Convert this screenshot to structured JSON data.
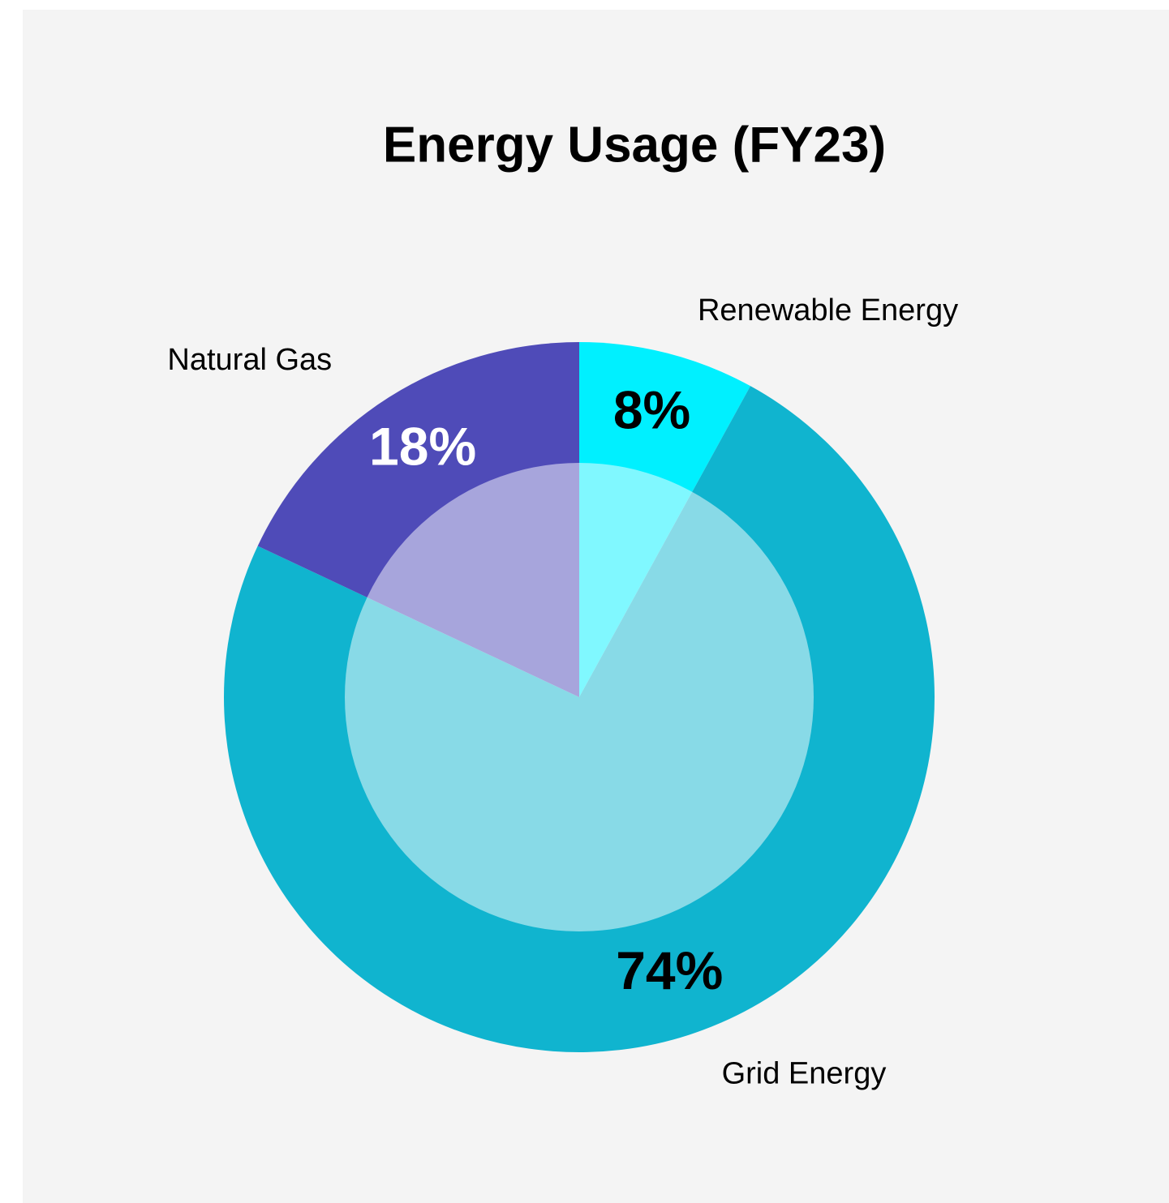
{
  "chart_data": {
    "type": "pie",
    "title": "Energy Usage (FY23)",
    "categories": [
      "Renewable Energy",
      "Grid Energy",
      "Natural Gas"
    ],
    "values": [
      8,
      74,
      18
    ],
    "value_labels": [
      "8%",
      "74%",
      "18%"
    ],
    "colors": [
      "#00f0ff",
      "#10b4cf",
      "#4f4bb8"
    ],
    "value_label_colors": [
      "#000000",
      "#000000",
      "#ffffff"
    ]
  }
}
